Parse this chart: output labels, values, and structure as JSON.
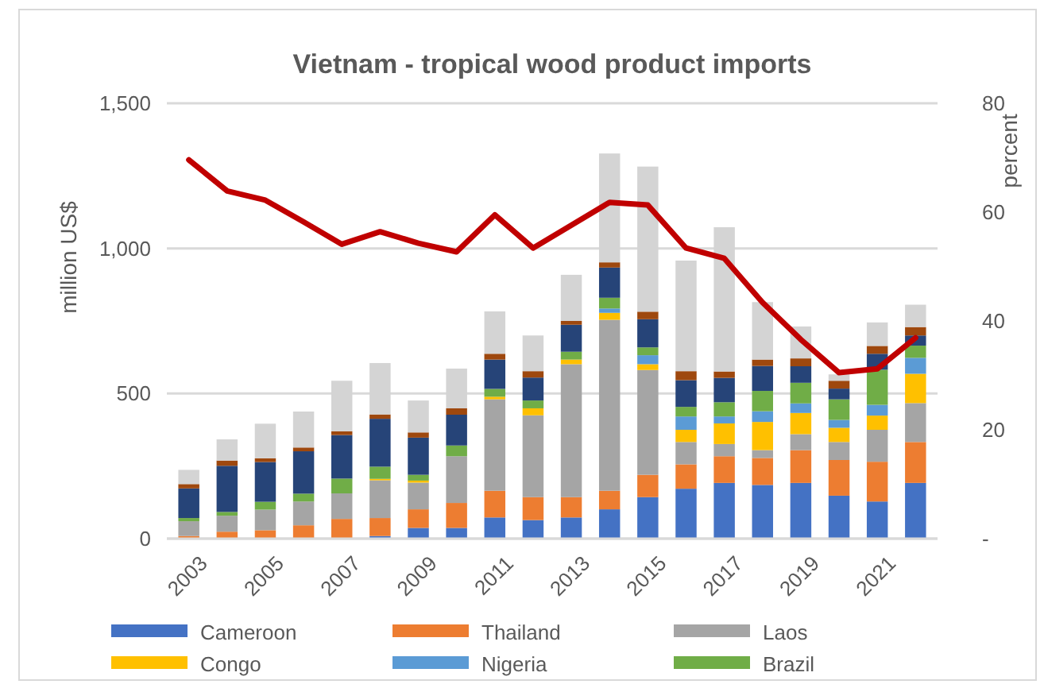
{
  "chart_data": {
    "type": "bar",
    "title": "Vietnam - tropical wood product imports",
    "ylabel": "million US$",
    "y2label": "percent",
    "categories": [
      "2003",
      null,
      "2005",
      null,
      "2007",
      null,
      "2009",
      null,
      "2011",
      null,
      "2013",
      null,
      "2015",
      null,
      "2017",
      null,
      "2019",
      null,
      "2021",
      null
    ],
    "stacked": true,
    "grid": "y",
    "legend": "bottom",
    "ylim": [
      0,
      1500
    ],
    "yticks": [
      0,
      500,
      {
        "value": 1000,
        "label": "1,000"
      },
      {
        "value": 1500,
        "label": "1,500"
      }
    ],
    "y2lim": [
      0,
      80
    ],
    "y2ticks": [
      {
        "value": 0,
        "label": "-"
      },
      20,
      40,
      60,
      80
    ],
    "series": [
      {
        "name": "Cameroon",
        "color": "#4472c4",
        "values": [
          0,
          0,
          0,
          0,
          0,
          9,
          37,
          37,
          73,
          64,
          73,
          101,
          143,
          172,
          192,
          185,
          192,
          148,
          128,
          192
        ]
      },
      {
        "name": "Thailand",
        "color": "#ed7d31",
        "values": [
          9,
          24,
          29,
          46,
          68,
          62,
          64,
          86,
          92,
          79,
          70,
          64,
          77,
          84,
          92,
          93,
          113,
          123,
          137,
          141
        ]
      },
      {
        "name": "Laos",
        "color": "#a5a5a5",
        "values": [
          51,
          55,
          71,
          82,
          88,
          130,
          92,
          161,
          315,
          282,
          458,
          589,
          361,
          77,
          42,
          27,
          55,
          62,
          110,
          134
        ]
      },
      {
        "name": "Congo",
        "color": "#ffc000",
        "values": [
          0,
          0,
          0,
          0,
          0,
          5,
          7,
          0,
          9,
          24,
          16,
          24,
          20,
          42,
          71,
          97,
          73,
          49,
          49,
          101
        ]
      },
      {
        "name": "Nigeria",
        "color": "#5b9bd5",
        "values": [
          0,
          0,
          0,
          0,
          0,
          0,
          0,
          0,
          0,
          0,
          0,
          15,
          31,
          46,
          24,
          37,
          33,
          27,
          37,
          55
        ]
      },
      {
        "name": "Brazil",
        "color": "#70ad47",
        "values": [
          11,
          13,
          27,
          27,
          51,
          42,
          20,
          37,
          27,
          27,
          27,
          37,
          27,
          33,
          49,
          70,
          71,
          71,
          121,
          42
        ]
      },
      {
        "color": "#264478",
        "values": [
          102,
          159,
          137,
          146,
          150,
          165,
          128,
          106,
          101,
          79,
          93,
          104,
          97,
          92,
          84,
          86,
          57,
          37,
          55,
          35
        ]
      },
      {
        "color": "#9e480e",
        "values": [
          15,
          18,
          13,
          13,
          13,
          15,
          18,
          22,
          20,
          22,
          13,
          18,
          26,
          31,
          22,
          22,
          27,
          27,
          27,
          29
        ]
      },
      {
        "color": "#d4d4d4",
        "values": [
          49,
          73,
          119,
          124,
          174,
          177,
          110,
          137,
          146,
          123,
          159,
          375,
          500,
          381,
          497,
          198,
          110,
          22,
          81,
          77
        ]
      },
      {
        "type": "line",
        "axis": "y2",
        "color": "#c00000",
        "values": [
          69.6,
          63.9,
          62.2,
          58.2,
          54.1,
          56.4,
          54.3,
          52.7,
          59.5,
          53.4,
          57.6,
          61.8,
          61.3,
          53.4,
          51.5,
          43.4,
          36.6,
          30.5,
          31.2,
          36.9
        ]
      }
    ]
  }
}
